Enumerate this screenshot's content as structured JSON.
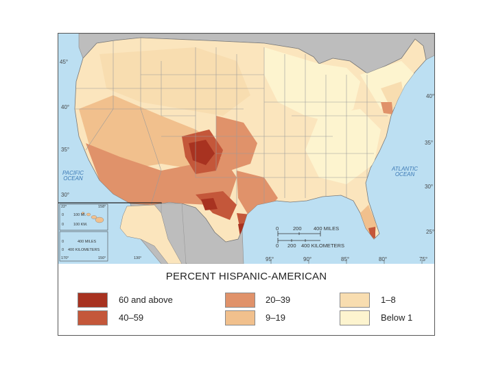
{
  "map": {
    "legend_title": "PERCENT HISPANIC-AMERICAN",
    "oceans": {
      "pacific": "PACIFIC\nOCEAN",
      "atlantic": "ATLANTIC\nOCEAN"
    },
    "latitudes": {
      "left": [
        "45°",
        "40°",
        "35°",
        "30°"
      ],
      "right": [
        "40°",
        "35°",
        "30°",
        "25°"
      ]
    },
    "longitudes": [
      "95°",
      "90°",
      "85°",
      "80°",
      "75°"
    ],
    "scale": {
      "miles": [
        "0",
        "200",
        "400 MILES"
      ],
      "kilometers": [
        "0",
        "200",
        "400 KILOMETERS"
      ]
    },
    "inset_hawaii": {
      "lat": "22°",
      "lon": "158°",
      "miles": [
        "0",
        "100 MI."
      ],
      "km": [
        "0",
        "100 KM."
      ]
    },
    "inset_alaska": {
      "miles": [
        "0",
        "400 MILES"
      ],
      "km": [
        "0",
        "400 KILOMETERS"
      ],
      "lons": [
        "170°",
        "150°",
        "130°"
      ]
    },
    "legend": [
      {
        "label": "60 and above",
        "color": "#a83220"
      },
      {
        "label": "40–59",
        "color": "#c4573a"
      },
      {
        "label": "20–39",
        "color": "#e0926a"
      },
      {
        "label": "9–19",
        "color": "#f1c08d"
      },
      {
        "label": "1–8",
        "color": "#f8ddb0"
      },
      {
        "label": "Below 1",
        "color": "#fdf4cf"
      }
    ],
    "colors": {
      "water": "#bcdff2",
      "foreign_land": "#bdbdbd",
      "state_border": "#9a9a9a"
    }
  }
}
